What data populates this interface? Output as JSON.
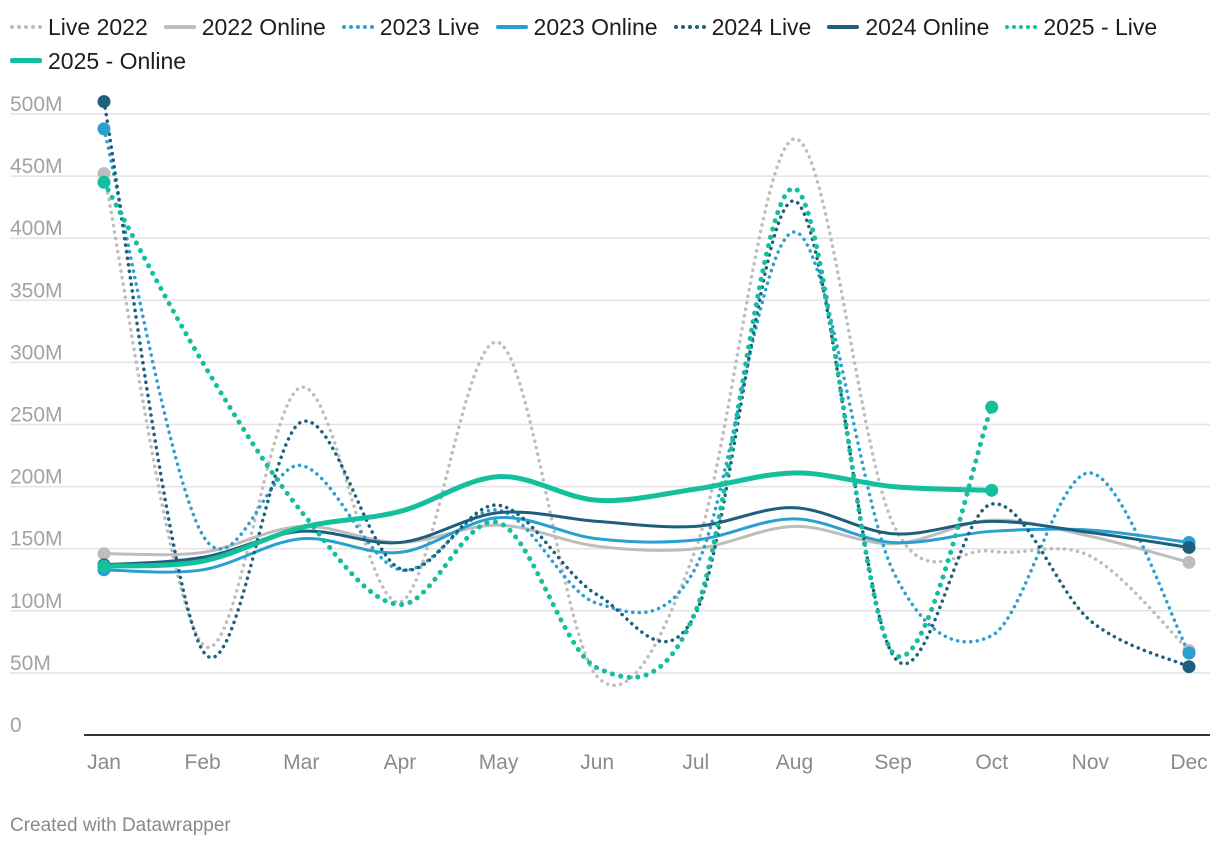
{
  "chart_data": {
    "type": "line",
    "title": "",
    "xlabel": "",
    "ylabel": "",
    "categories": [
      "Jan",
      "Feb",
      "Mar",
      "Apr",
      "May",
      "Jun",
      "Jul",
      "Aug",
      "Sep",
      "Oct",
      "Nov",
      "Dec"
    ],
    "ylim": [
      0,
      500000000
    ],
    "y_ticks": [
      0,
      50000000,
      100000000,
      150000000,
      200000000,
      250000000,
      300000000,
      350000000,
      400000000,
      450000000,
      500000000
    ],
    "y_tick_labels": [
      "0",
      "50M",
      "100M",
      "150M",
      "200M",
      "250M",
      "300M",
      "350M",
      "400M",
      "450M",
      "500M"
    ],
    "grid": true,
    "legend_position": "top",
    "series": [
      {
        "name": "Live 2022",
        "color": "#bdbdbd",
        "style": "dotted",
        "values": [
          452000000,
          73000000,
          280000000,
          107000000,
          316000000,
          47000000,
          150000000,
          480000000,
          170000000,
          148000000,
          144000000,
          68000000
        ]
      },
      {
        "name": "2022 Online",
        "color": "#bdbdbd",
        "style": "solid",
        "values": [
          146000000,
          147000000,
          168000000,
          155000000,
          169000000,
          152000000,
          150000000,
          168000000,
          154000000,
          173000000,
          160000000,
          139000000
        ]
      },
      {
        "name": "2023 Live",
        "color": "#2a9fd0",
        "style": "dotted",
        "values": [
          488000000,
          161000000,
          217000000,
          133000000,
          181000000,
          106000000,
          135000000,
          405000000,
          132000000,
          80000000,
          211000000,
          66000000
        ]
      },
      {
        "name": "2023 Online",
        "color": "#2a9fd0",
        "style": "solid",
        "values": [
          133000000,
          133000000,
          158000000,
          147000000,
          175000000,
          158000000,
          157000000,
          174000000,
          155000000,
          164000000,
          165000000,
          155000000
        ]
      },
      {
        "name": "2024 Live",
        "color": "#1e5f7b",
        "style": "dotted",
        "values": [
          510000000,
          68000000,
          252000000,
          134000000,
          185000000,
          113000000,
          98000000,
          430000000,
          64000000,
          186000000,
          92000000,
          55000000
        ]
      },
      {
        "name": "2024 Online",
        "color": "#1e5f7b",
        "style": "solid",
        "values": [
          137000000,
          143000000,
          164000000,
          155000000,
          179000000,
          172000000,
          168000000,
          183000000,
          162000000,
          172000000,
          163000000,
          151000000
        ]
      },
      {
        "name": "2025 - Live",
        "color": "#13bf9c",
        "style": "dotted",
        "values": [
          445000000,
          300000000,
          180000000,
          105000000,
          171000000,
          54000000,
          100000000,
          440000000,
          66000000,
          264000000,
          null,
          null
        ]
      },
      {
        "name": "2025 - Online",
        "color": "#13bf9c",
        "style": "solid",
        "values": [
          136000000,
          140000000,
          167000000,
          180000000,
          208000000,
          189000000,
          198000000,
          211000000,
          200000000,
          197000000,
          null,
          null
        ]
      }
    ]
  },
  "legend": {
    "items": [
      {
        "label": "Live 2022",
        "color": "#bdbdbd",
        "style": "dotted"
      },
      {
        "label": "2022 Online",
        "color": "#bdbdbd",
        "style": "solid"
      },
      {
        "label": "2023 Live",
        "color": "#2a9fd0",
        "style": "dotted"
      },
      {
        "label": "2023 Online",
        "color": "#2a9fd0",
        "style": "solid"
      },
      {
        "label": "2024 Live",
        "color": "#1e5f7b",
        "style": "dotted"
      },
      {
        "label": "2024 Online",
        "color": "#1e5f7b",
        "style": "solid"
      },
      {
        "label": "2025 - Live",
        "color": "#13bf9c",
        "style": "dotted"
      },
      {
        "label": "2025 - Online",
        "color": "#13bf9c",
        "style": "solid"
      }
    ]
  },
  "footer": {
    "text": "Created with Datawrapper"
  }
}
